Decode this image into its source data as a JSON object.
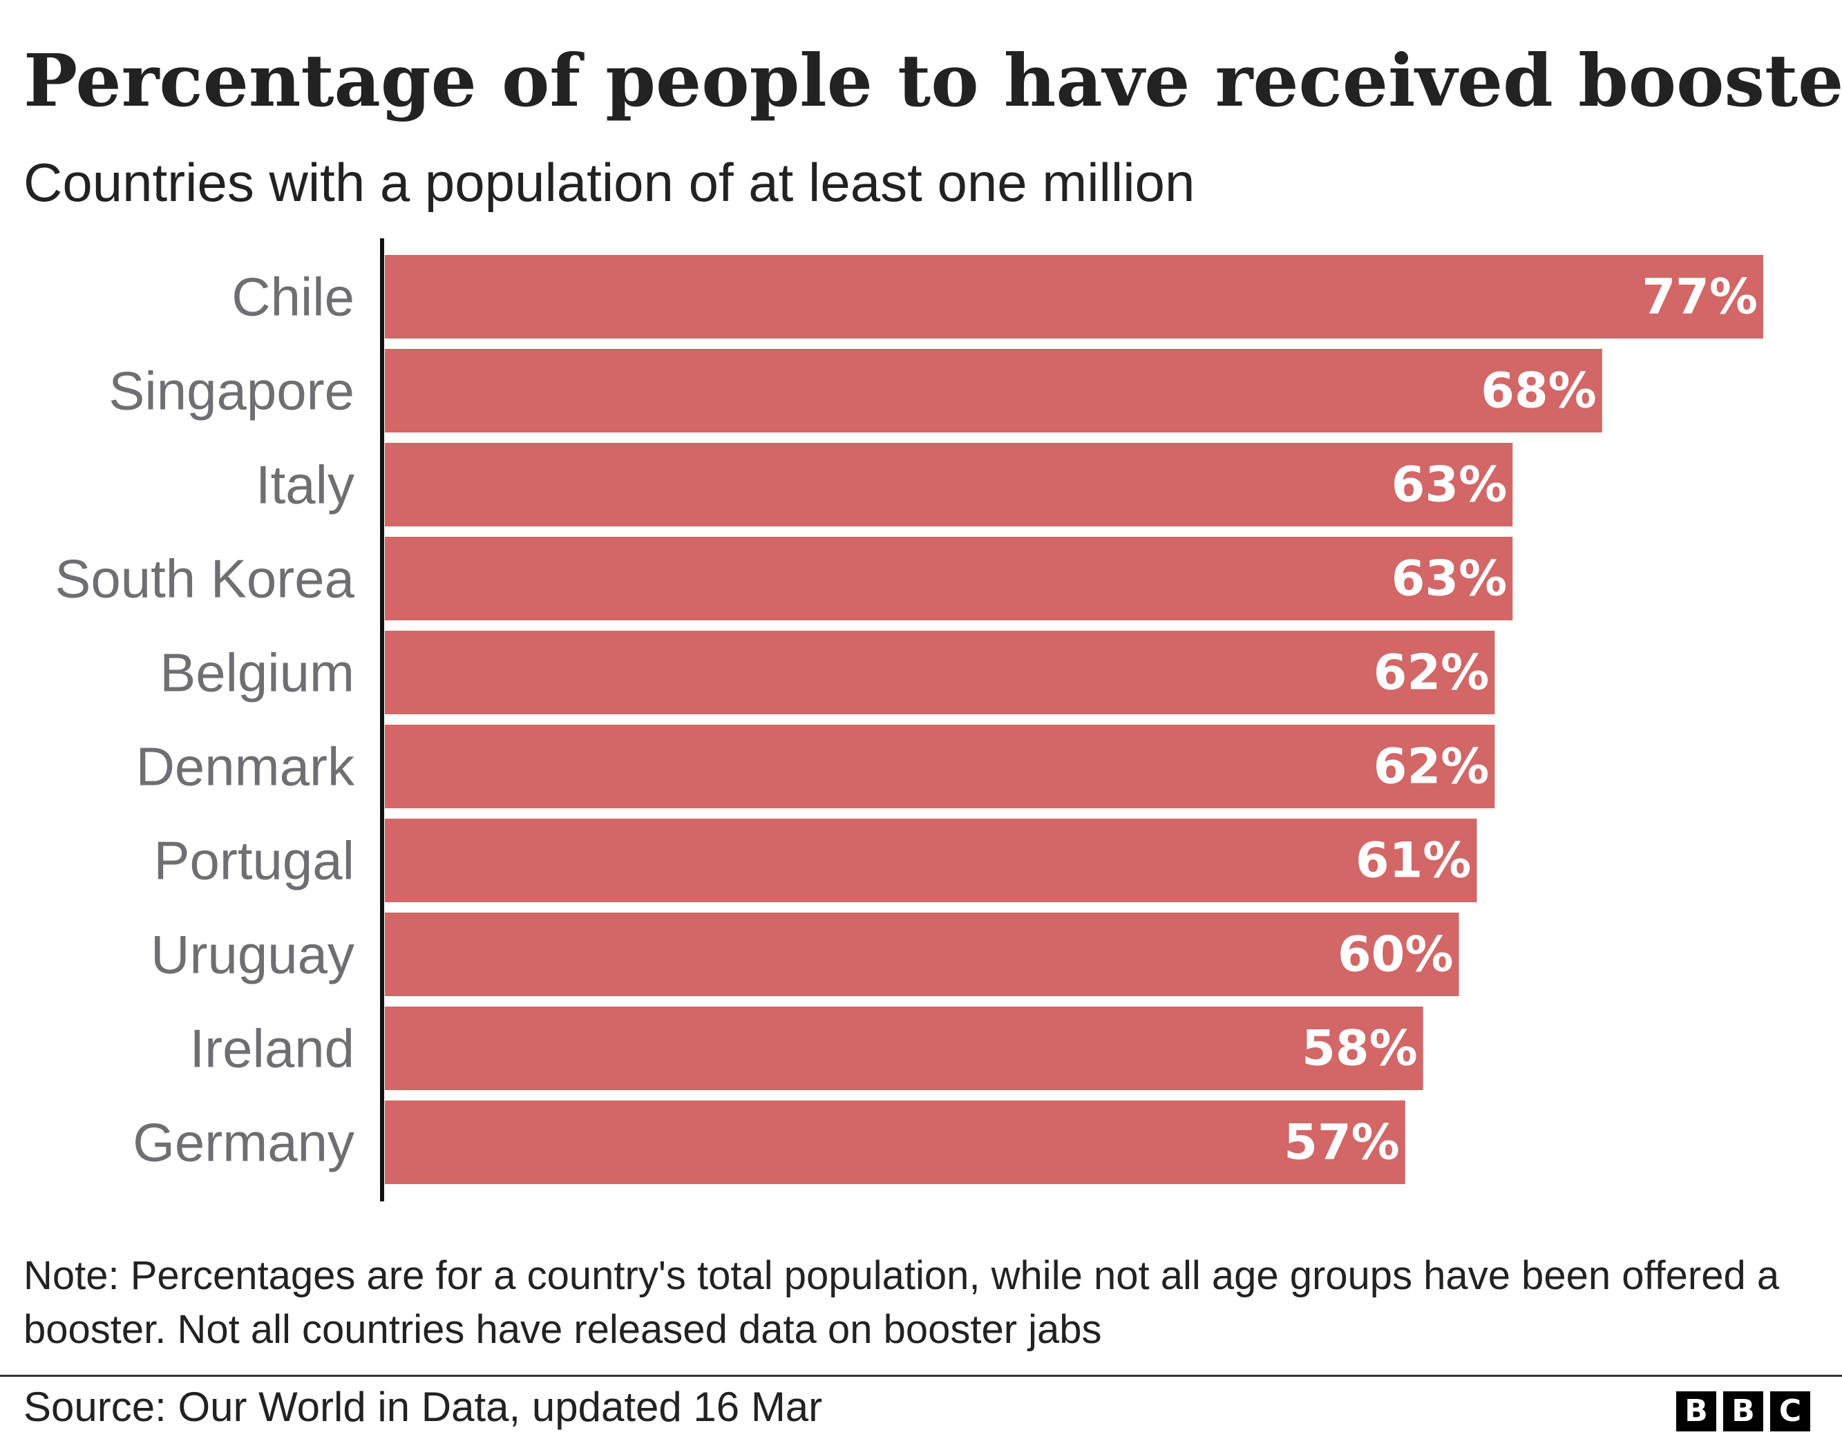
{
  "chart_data": {
    "type": "bar",
    "orientation": "horizontal",
    "title": "Percentage of people to have received booster",
    "subtitle": "Countries with a population of at least one million",
    "categories": [
      "Chile",
      "Singapore",
      "Italy",
      "South Korea",
      "Belgium",
      "Denmark",
      "Portugal",
      "Uruguay",
      "Ireland",
      "Germany"
    ],
    "values": [
      77,
      68,
      63,
      63,
      62,
      62,
      61,
      60,
      58,
      57
    ],
    "value_labels": [
      "77%",
      "68%",
      "63%",
      "63%",
      "62%",
      "62%",
      "61%",
      "60%",
      "58%",
      "57%"
    ],
    "xlim": [
      0,
      77
    ],
    "xlabel": "",
    "ylabel": "",
    "grid": false,
    "bar_color": "#d36666",
    "axis_color": "#111111",
    "category_label_color": "#6e6e73",
    "value_label_color": "#ffffff"
  },
  "note": "Note: Percentages are for a country's total population, while not all age groups have been offered a booster. Not all countries have released data on booster jabs",
  "source": "Source: Our World in Data, updated 16 Mar",
  "logo": {
    "letters": [
      "B",
      "B",
      "C"
    ]
  }
}
